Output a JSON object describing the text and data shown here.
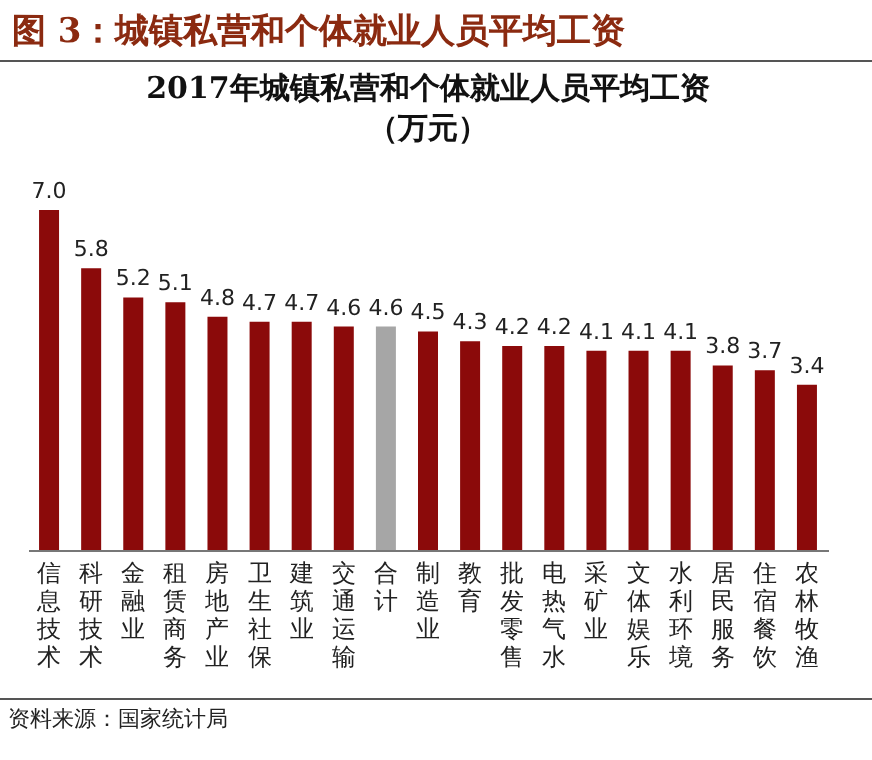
{
  "chart_data": {
    "type": "bar",
    "title": "图 3：城镇私营和个体就业人员平均工资",
    "subtitle": "2017年城镇私营和个体就业人员平均工资",
    "ylabel": "（万元）",
    "categories": [
      "信息技术",
      "科研技术",
      "金融业",
      "租赁商务",
      "房地产业",
      "卫生社保",
      "建筑业",
      "交通运输",
      "合计",
      "制造业",
      "教育",
      "批发零售",
      "电热气水",
      "采矿业",
      "文体娱乐",
      "水利环境",
      "居民服务",
      "住宿餐饮",
      "农林牧渔"
    ],
    "values": [
      7.0,
      5.8,
      5.2,
      5.1,
      4.8,
      4.7,
      4.7,
      4.6,
      4.6,
      4.5,
      4.3,
      4.2,
      4.2,
      4.1,
      4.1,
      4.1,
      3.8,
      3.7,
      3.4
    ],
    "colors": [
      "#8b0a0a",
      "#8b0a0a",
      "#8b0a0a",
      "#8b0a0a",
      "#8b0a0a",
      "#8b0a0a",
      "#8b0a0a",
      "#8b0a0a",
      "#a6a6a6",
      "#8b0a0a",
      "#8b0a0a",
      "#8b0a0a",
      "#8b0a0a",
      "#8b0a0a",
      "#8b0a0a",
      "#8b0a0a",
      "#8b0a0a",
      "#8b0a0a",
      "#8b0a0a"
    ],
    "value_labels": [
      "7.0",
      "5.8",
      "5.2",
      "5.1",
      "4.8",
      "4.7",
      "4.7",
      "4.6",
      "4.6",
      "4.5",
      "4.3",
      "4.2",
      "4.2",
      "4.1",
      "4.1",
      "4.1",
      "3.8",
      "3.7",
      "3.4"
    ],
    "annotations": [
      "资料来源：国家统计局"
    ]
  }
}
